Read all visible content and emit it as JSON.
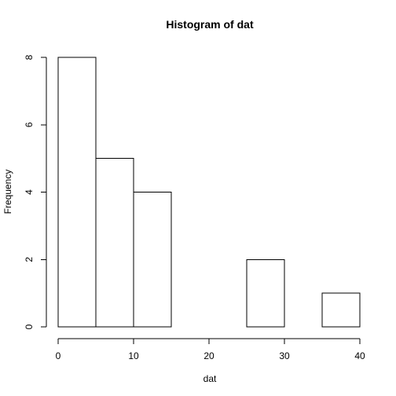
{
  "chart_data": {
    "type": "bar",
    "title": "Histogram of dat",
    "xlabel": "dat",
    "ylabel": "Frequency",
    "bins": [
      {
        "start": 0,
        "end": 5,
        "count": 8
      },
      {
        "start": 5,
        "end": 10,
        "count": 5
      },
      {
        "start": 10,
        "end": 15,
        "count": 4
      },
      {
        "start": 15,
        "end": 20,
        "count": 0
      },
      {
        "start": 20,
        "end": 25,
        "count": 0
      },
      {
        "start": 25,
        "end": 30,
        "count": 2
      },
      {
        "start": 30,
        "end": 35,
        "count": 0
      },
      {
        "start": 35,
        "end": 40,
        "count": 1
      }
    ],
    "xlim": [
      0,
      40
    ],
    "ylim": [
      0,
      8
    ],
    "x_ticks": [
      0,
      10,
      20,
      30,
      40
    ],
    "y_ticks": [
      0,
      2,
      4,
      6,
      8
    ],
    "grid": false,
    "bar_fill": "#ffffff",
    "bar_stroke": "#000000"
  }
}
